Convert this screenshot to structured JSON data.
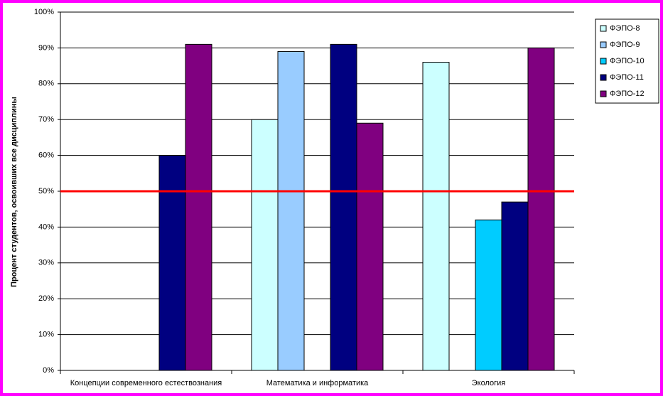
{
  "chart_data": {
    "type": "bar",
    "y_label": "Процент студентов, освоивших все дисциплины",
    "categories": [
      "Концепции современного естествознания",
      "Математика и информатика",
      "Экология"
    ],
    "series": [
      {
        "name": "ФЭПО-8",
        "color": "#ccffff",
        "values": [
          null,
          70,
          86
        ]
      },
      {
        "name": "ФЭПО-9",
        "color": "#99ccff",
        "values": [
          null,
          89,
          null
        ]
      },
      {
        "name": "ФЭПО-10",
        "color": "#00ccff",
        "values": [
          null,
          null,
          42
        ]
      },
      {
        "name": "ФЭПО-11",
        "color": "#000080",
        "values": [
          60,
          91,
          47
        ]
      },
      {
        "name": "ФЭПО-12",
        "color": "#800080",
        "values": [
          91,
          69,
          90
        ]
      }
    ],
    "ylim": [
      0,
      100
    ],
    "yticks": [
      {
        "value": 0,
        "label": "0%"
      },
      {
        "value": 10,
        "label": "10%"
      },
      {
        "value": 20,
        "label": "20%"
      },
      {
        "value": 30,
        "label": "30%"
      },
      {
        "value": 40,
        "label": "40%"
      },
      {
        "value": 50,
        "label": "50%"
      },
      {
        "value": 60,
        "label": "60%"
      },
      {
        "value": 70,
        "label": "70%"
      },
      {
        "value": 80,
        "label": "80%"
      },
      {
        "value": 90,
        "label": "90%"
      },
      {
        "value": 100,
        "label": "100%"
      }
    ],
    "grid": true,
    "reference_line": {
      "value": 50,
      "color": "#ff0000"
    },
    "legend": "right"
  }
}
